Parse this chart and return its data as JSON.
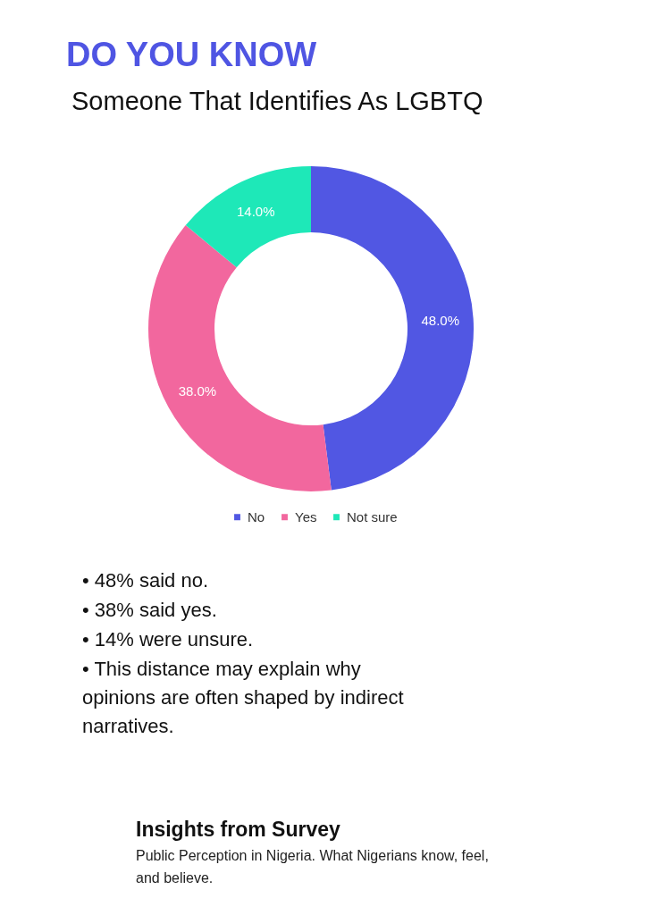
{
  "chart_data": {
    "type": "donut",
    "title": "DO YOU KNOW",
    "subtitle": "Someone That Identifies As LGBTQ",
    "categories": [
      "No",
      "Yes",
      "Not sure"
    ],
    "values": [
      48,
      38,
      14
    ],
    "colors": [
      "#5157e3",
      "#f2679e",
      "#1ee8b8"
    ],
    "value_labels": [
      "48.0%",
      "38.0%",
      "14.0%"
    ],
    "legend": "bottom",
    "annotations": [
      "• 48% said no.",
      "• 38% said yes.",
      "• 14% were unsure.",
      "• This distance may explain why opinions are often shaped by indirect narratives.",
      "Insights from Survey",
      "Public Perception in Nigeria. What Nigerians know, feel, and believe."
    ]
  }
}
